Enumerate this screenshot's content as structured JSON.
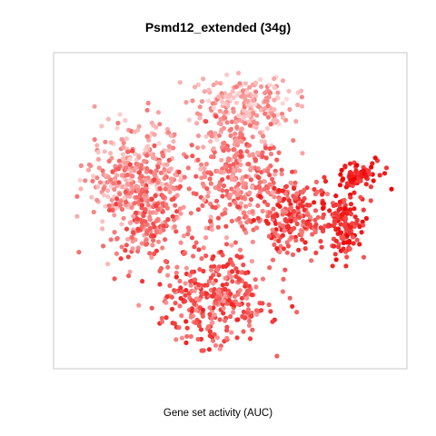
{
  "chart_data": {
    "type": "scatter",
    "title": "Psmd12_extended (34g)",
    "xlabel": "",
    "ylabel": "",
    "caption": "Gene set activity (AUC)",
    "grid": false,
    "axes_visible": false,
    "color_scale": {
      "low": "#ffe8e8",
      "high": "#ee0000"
    },
    "xlim": [
      0,
      1
    ],
    "ylim": [
      0,
      1
    ],
    "clusters": [
      {
        "label": "upper-left",
        "x": 0.22,
        "y": 0.62,
        "rx": 0.14,
        "ry": 0.16,
        "n": 320,
        "activity": [
          0.1,
          0.55
        ]
      },
      {
        "label": "left-middle",
        "x": 0.26,
        "y": 0.5,
        "rx": 0.1,
        "ry": 0.16,
        "n": 220,
        "activity": [
          0.3,
          0.75
        ]
      },
      {
        "label": "top-center",
        "x": 0.54,
        "y": 0.84,
        "rx": 0.13,
        "ry": 0.09,
        "n": 240,
        "activity": [
          0.05,
          0.5
        ]
      },
      {
        "label": "center",
        "x": 0.52,
        "y": 0.6,
        "rx": 0.12,
        "ry": 0.17,
        "n": 300,
        "activity": [
          0.25,
          0.7
        ]
      },
      {
        "label": "center-right",
        "x": 0.68,
        "y": 0.48,
        "rx": 0.1,
        "ry": 0.1,
        "n": 200,
        "activity": [
          0.4,
          0.9
        ]
      },
      {
        "label": "far-right",
        "x": 0.83,
        "y": 0.46,
        "rx": 0.06,
        "ry": 0.1,
        "n": 140,
        "activity": [
          0.6,
          1.0
        ]
      },
      {
        "label": "right-top",
        "x": 0.88,
        "y": 0.62,
        "rx": 0.06,
        "ry": 0.04,
        "n": 80,
        "activity": [
          0.65,
          1.0
        ]
      },
      {
        "label": "bottom",
        "x": 0.45,
        "y": 0.22,
        "rx": 0.15,
        "ry": 0.14,
        "n": 320,
        "activity": [
          0.35,
          0.85
        ]
      }
    ]
  }
}
